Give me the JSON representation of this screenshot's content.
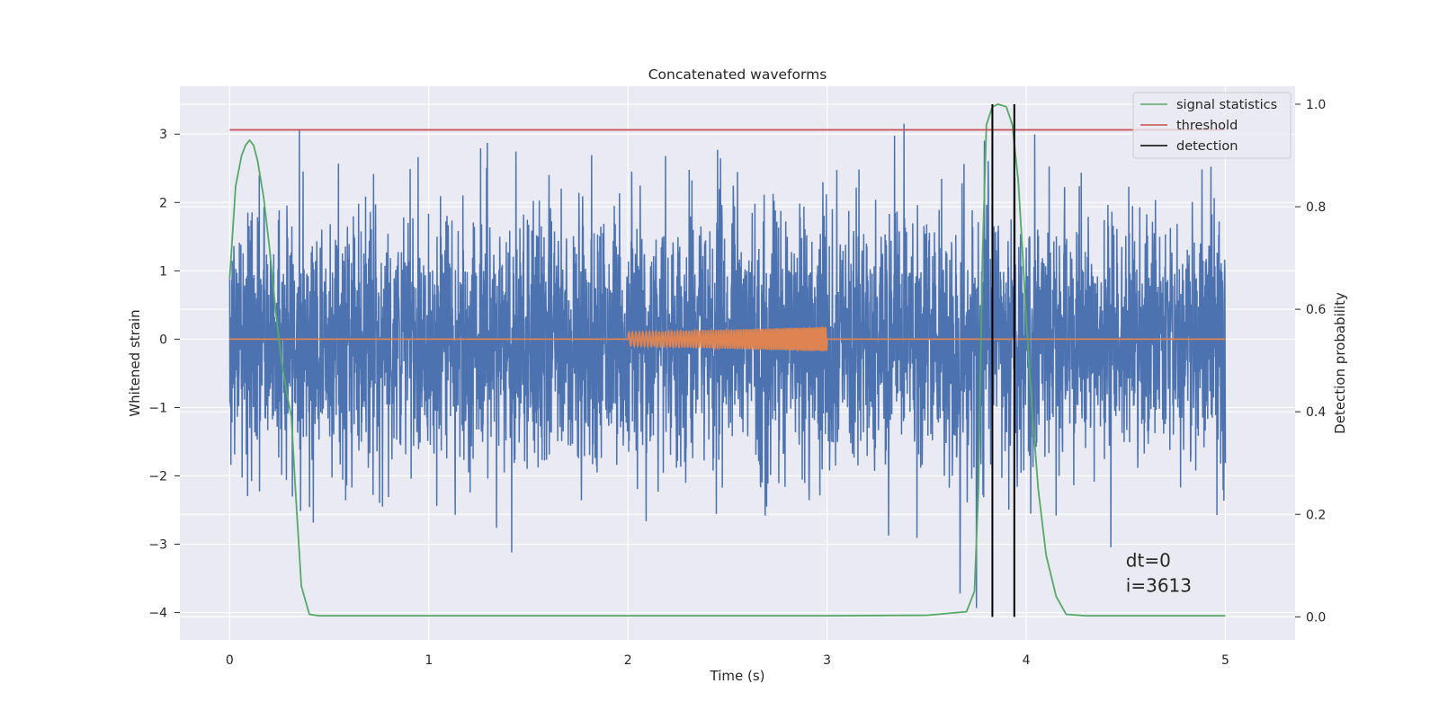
{
  "chart_data": {
    "type": "line",
    "title": "Concatenated waveforms",
    "xlabel": "Time (s)",
    "ylabel": "Whitened strain",
    "y2label": "Detection probability",
    "xlim": [
      -0.25,
      5.35
    ],
    "ylim": [
      -4.4,
      3.7
    ],
    "y2lim": [
      -0.045,
      1.035
    ],
    "xticks": [
      0,
      1,
      2,
      3,
      4,
      5
    ],
    "yticks": [
      -4,
      -3,
      -2,
      -1,
      0,
      1,
      2,
      3
    ],
    "y2ticks": [
      0.0,
      0.2,
      0.4,
      0.6,
      0.8,
      1.0
    ],
    "xtick_labels": [
      "0",
      "1",
      "2",
      "3",
      "4",
      "5"
    ],
    "ytick_labels": [
      "−4",
      "−3",
      "−2",
      "−1",
      "0",
      "1",
      "2",
      "3"
    ],
    "y2tick_labels": [
      "0.0",
      "0.2",
      "0.4",
      "0.6",
      "0.8",
      "1.0"
    ],
    "grid": true,
    "legend_position": "top-right",
    "colors": {
      "background": "#eaeaf2",
      "grid": "#ffffff",
      "noise": "#4c72b0",
      "injection": "#dd8452",
      "signal_statistics": "#55a868",
      "threshold": "#c44e52",
      "detection": "#000000"
    },
    "series": [
      {
        "name": "",
        "kind": "whitened-noise",
        "axis": "left",
        "x_range": [
          0,
          5
        ],
        "envelope": {
          "upper": [
            0.9,
            3.3
          ],
          "lower": [
            -0.9,
            -4.0
          ]
        }
      },
      {
        "name": "",
        "kind": "injected-chirp",
        "axis": "left",
        "x_range": [
          2,
          3
        ],
        "amplitude_start": 0.1,
        "amplitude_end": 0.18
      },
      {
        "name": "signal statistics",
        "axis": "right",
        "x": [
          0.0,
          0.03,
          0.06,
          0.08,
          0.1,
          0.12,
          0.14,
          0.17,
          0.2,
          0.23,
          0.26,
          0.29,
          0.31,
          0.33,
          0.36,
          0.4,
          0.45,
          0.6,
          1.0,
          2.0,
          3.0,
          3.5,
          3.7,
          3.74,
          3.76,
          3.78,
          3.8,
          3.83,
          3.86,
          3.9,
          3.93,
          3.96,
          3.98,
          4.0,
          4.03,
          4.06,
          4.1,
          4.15,
          4.2,
          4.3,
          4.5,
          5.0
        ],
        "y": [
          0.66,
          0.84,
          0.9,
          0.92,
          0.93,
          0.92,
          0.89,
          0.82,
          0.72,
          0.6,
          0.5,
          0.43,
          0.39,
          0.25,
          0.06,
          0.005,
          0.002,
          0.002,
          0.002,
          0.002,
          0.002,
          0.003,
          0.01,
          0.05,
          0.25,
          0.7,
          0.96,
          0.995,
          1.0,
          0.995,
          0.96,
          0.85,
          0.72,
          0.58,
          0.4,
          0.25,
          0.12,
          0.04,
          0.005,
          0.002,
          0.002,
          0.002
        ]
      },
      {
        "name": "threshold",
        "axis": "right",
        "x": [
          0,
          5
        ],
        "y": [
          0.95,
          0.95
        ]
      },
      {
        "name": "detection",
        "axis": "right",
        "kind": "vlines",
        "x": [
          3.83,
          3.94
        ],
        "y_range": [
          0.0,
          1.0
        ]
      }
    ],
    "annotation": {
      "lines": [
        "dt=0",
        "i=3613"
      ],
      "x": 4.5,
      "y": -3.5
    }
  }
}
